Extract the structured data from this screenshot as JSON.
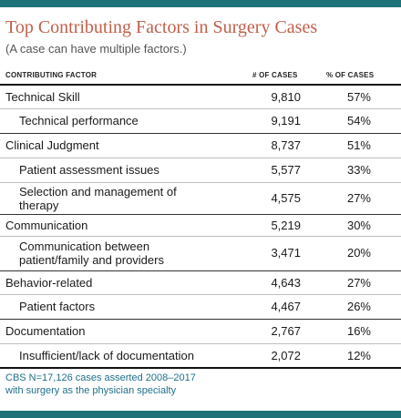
{
  "title": "Top Contributing Factors in Surgery Cases",
  "subtitle": "(A case can have multiple factors.)",
  "columns": {
    "factor": "CONTRIBUTING FACTOR",
    "cases": "# OF CASES",
    "pct": "% OF CASES"
  },
  "rows": [
    {
      "label": "Technical Skill",
      "cases": "9,810",
      "pct": "57%"
    },
    {
      "label": "Technical performance",
      "cases": "9,191",
      "pct": "54%"
    },
    {
      "label": "Clinical Judgment",
      "cases": "8,737",
      "pct": "51%"
    },
    {
      "label": "Patient assessment issues",
      "cases": "5,577",
      "pct": "33%"
    },
    {
      "label_line1": "Selection and management of",
      "label_line2": "therapy",
      "cases": "4,575",
      "pct": "27%"
    },
    {
      "label": "Communication",
      "cases": "5,219",
      "pct": "30%"
    },
    {
      "label_line1": "Communication between",
      "label_line2": "patient/family and providers",
      "cases": "3,471",
      "pct": "20%"
    },
    {
      "label": "Behavior-related",
      "cases": "4,643",
      "pct": "27%"
    },
    {
      "label": "Patient factors",
      "cases": "4,467",
      "pct": "26%"
    },
    {
      "label": "Documentation",
      "cases": "2,767",
      "pct": "16%"
    },
    {
      "label": "Insufficient/lack of documentation",
      "cases": "2,072",
      "pct": "12%"
    }
  ],
  "footnote": {
    "line1": "CBS N=17,126 cases asserted 2008–2017",
    "line2": "with surgery as the physician specialty"
  },
  "colors": {
    "accent_bar": "#1f7378",
    "title": "#c0604a",
    "footnote": "#1f6f8b"
  }
}
